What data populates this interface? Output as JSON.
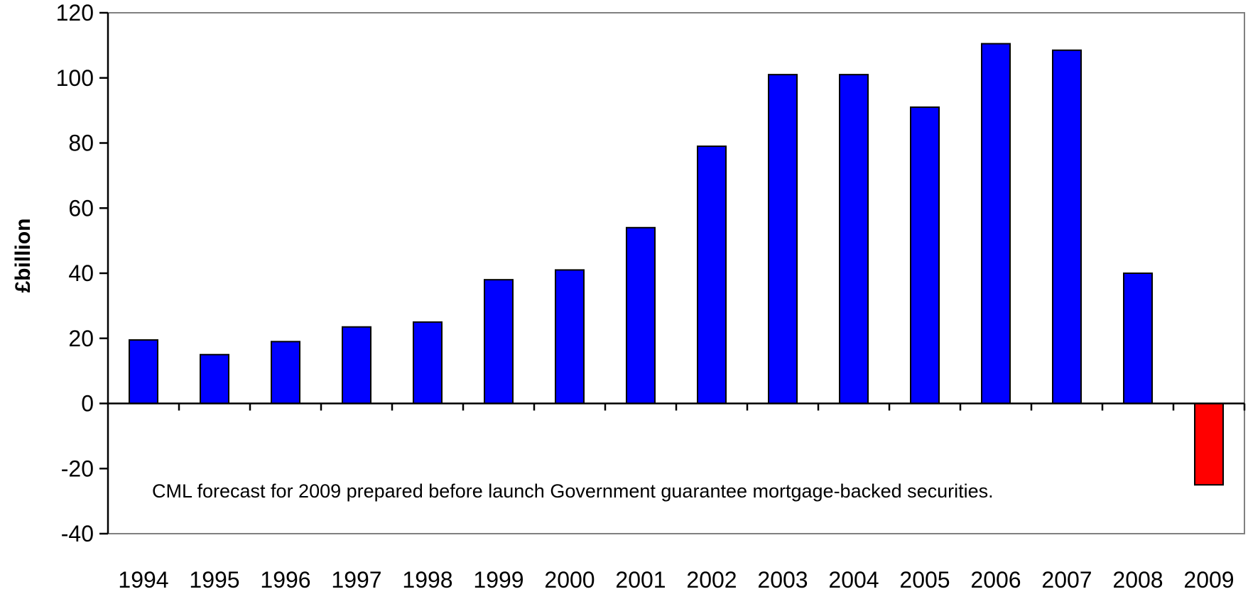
{
  "chart_data": {
    "type": "bar",
    "title": "",
    "xlabel": "",
    "ylabel": "£billion",
    "ylim": [
      -40,
      120
    ],
    "yticks": [
      -40,
      -20,
      0,
      20,
      40,
      60,
      80,
      100,
      120
    ],
    "grid": false,
    "categories": [
      "1994",
      "1995",
      "1996",
      "1997",
      "1998",
      "1999",
      "2000",
      "2001",
      "2002",
      "2003",
      "2004",
      "2005",
      "2006",
      "2007",
      "2008",
      "2009"
    ],
    "values": [
      19.5,
      15,
      19,
      23.5,
      25,
      38,
      41,
      54,
      79,
      101,
      101,
      91,
      110.5,
      108.5,
      40,
      -25
    ],
    "bar_colors": [
      "#0000ff",
      "#0000ff",
      "#0000ff",
      "#0000ff",
      "#0000ff",
      "#0000ff",
      "#0000ff",
      "#0000ff",
      "#0000ff",
      "#0000ff",
      "#0000ff",
      "#0000ff",
      "#0000ff",
      "#0000ff",
      "#0000ff",
      "#ff0000"
    ],
    "annotation": "CML forecast for 2009 prepared before launch Government guarantee mortgage-backed securities."
  }
}
